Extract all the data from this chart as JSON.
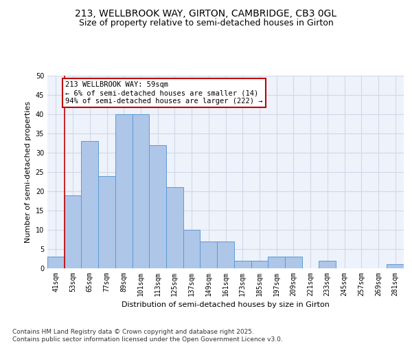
{
  "title_line1": "213, WELLBROOK WAY, GIRTON, CAMBRIDGE, CB3 0GL",
  "title_line2": "Size of property relative to semi-detached houses in Girton",
  "xlabel": "Distribution of semi-detached houses by size in Girton",
  "ylabel": "Number of semi-detached properties",
  "categories": [
    "41sqm",
    "53sqm",
    "65sqm",
    "77sqm",
    "89sqm",
    "101sqm",
    "113sqm",
    "125sqm",
    "137sqm",
    "149sqm",
    "161sqm",
    "173sqm",
    "185sqm",
    "197sqm",
    "209sqm",
    "221sqm",
    "233sqm",
    "245sqm",
    "257sqm",
    "269sqm",
    "281sqm"
  ],
  "values": [
    3,
    19,
    33,
    24,
    40,
    40,
    32,
    21,
    10,
    7,
    7,
    2,
    2,
    3,
    3,
    0,
    2,
    0,
    0,
    0,
    1
  ],
  "bar_color": "#aec6e8",
  "bar_edge_color": "#5b9bd5",
  "grid_color": "#d0d8e8",
  "background_color": "#eef2fb",
  "annotation_line1": "213 WELLBROOK WAY: 59sqm",
  "annotation_line2": "← 6% of semi-detached houses are smaller (14)",
  "annotation_line3": "94% of semi-detached houses are larger (222) →",
  "annotation_box_color": "#ffffff",
  "annotation_box_edge_color": "#c00000",
  "vline_x": 0.5,
  "vline_color": "#c00000",
  "ylim": [
    0,
    50
  ],
  "yticks": [
    0,
    5,
    10,
    15,
    20,
    25,
    30,
    35,
    40,
    45,
    50
  ],
  "footer_text": "Contains HM Land Registry data © Crown copyright and database right 2025.\nContains public sector information licensed under the Open Government Licence v3.0.",
  "title_fontsize": 10,
  "subtitle_fontsize": 9,
  "axis_label_fontsize": 8,
  "tick_fontsize": 7,
  "annotation_fontsize": 7.5,
  "footer_fontsize": 6.5
}
